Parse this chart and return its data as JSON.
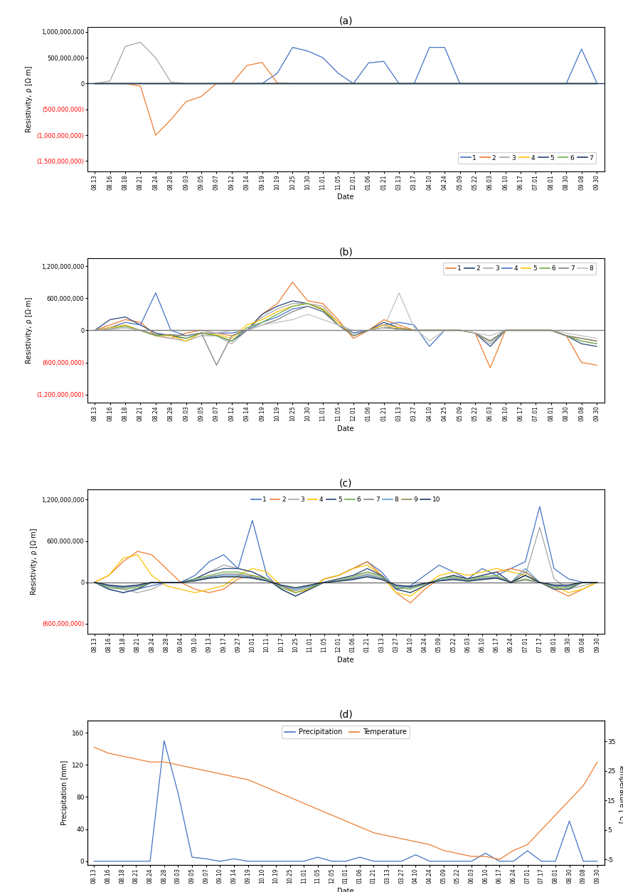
{
  "dates_a": [
    "08.13",
    "08.16",
    "08.18",
    "08.21",
    "08.24",
    "08.28",
    "09.03",
    "09.05",
    "09.07",
    "09.12",
    "09.14",
    "09.19",
    "10.19",
    "10.25",
    "10.30",
    "11.01",
    "11.05",
    "12.01",
    "01.06",
    "01.21",
    "03.13",
    "03.17",
    "04.10",
    "04.24",
    "05.09",
    "05.22",
    "06.03",
    "06.10",
    "06.17",
    "07.01",
    "08.01",
    "08.30",
    "09.08",
    "09.30"
  ],
  "dates_b": [
    "08.13",
    "08.16",
    "08.18",
    "08.21",
    "08.24",
    "08.28",
    "09.03",
    "09.05",
    "09.07",
    "09.12",
    "09.14",
    "09.19",
    "10.19",
    "10.25",
    "10.30",
    "11.01",
    "11.05",
    "12.01",
    "01.06",
    "01.21",
    "03.13",
    "03.27",
    "04.10",
    "04.25",
    "05.09",
    "05.22",
    "06.03",
    "06.10",
    "06.17",
    "07.01",
    "08.01",
    "08.30",
    "09.08",
    "09.30"
  ],
  "dates_c": [
    "08.13",
    "08.16",
    "08.18",
    "08.21",
    "08.24",
    "08.28",
    "09.04",
    "09.10",
    "09.13",
    "09.17",
    "09.27",
    "10.01",
    "10.11",
    "10.17",
    "10.25",
    "11.01",
    "11.05",
    "12.01",
    "01.06",
    "01.21",
    "03.13",
    "03.27",
    "04.10",
    "04.24",
    "05.09",
    "05.22",
    "06.03",
    "06.10",
    "06.17",
    "06.24",
    "07.01",
    "07.17",
    "08.01",
    "08.30",
    "09.08",
    "09.30"
  ],
  "dates_d": [
    "08.13",
    "08.16",
    "08.18",
    "08.21",
    "08.24",
    "08.28",
    "09.03",
    "09.05",
    "09.07",
    "09.10",
    "09.14",
    "09.19",
    "10.10",
    "10.19",
    "10.25",
    "11.01",
    "11.05",
    "12.05",
    "01.01",
    "01.06",
    "01.21",
    "03.13",
    "03.27",
    "04.10",
    "04.24",
    "05.09",
    "05.22",
    "06.03",
    "06.10",
    "06.17",
    "06.24",
    "07.01",
    "07.17",
    "08.01",
    "08.30",
    "09.08",
    "09.30"
  ],
  "panel_a_subtitle": "(a)",
  "panel_b_subtitle": "(b)",
  "panel_c_subtitle": "(c)",
  "panel_d_subtitle": "(d)",
  "ylabel_res": "Resistivity, ρ [Ω·m]",
  "xlabel": "Date",
  "ylabel_precip": "Precipitation [mm]",
  "ylabel_temp": "Temperature [°C]",
  "panel_a_yticks": [
    -1500000000,
    -1000000000,
    -500000000,
    0,
    500000000,
    1000000000
  ],
  "panel_a_ylim": [
    -1700000000,
    1100000000
  ],
  "panel_b_yticks": [
    -1200000000,
    -600000000,
    0,
    600000000,
    1200000000
  ],
  "panel_b_ylim": [
    -1350000000,
    1350000000
  ],
  "panel_c_yticks": [
    -600000000,
    0,
    600000000,
    1200000000
  ],
  "panel_c_ylim": [
    -750000000,
    1350000000
  ],
  "panel_d_ylim_precip": [
    -5,
    175
  ],
  "panel_d_yticks_precip": [
    0,
    40,
    80,
    120,
    160
  ],
  "panel_d_ylim_temp": [
    -7,
    42
  ],
  "panel_d_yticks_temp": [
    -5,
    5,
    15,
    25,
    35
  ],
  "legend_a_colors": [
    "#4472C4",
    "#ED7D31",
    "#A5A5A5",
    "#FFC000",
    "#264478",
    "#70AD47",
    "#203864"
  ],
  "legend_a_labels": [
    "1",
    "2",
    "3",
    "4",
    "5",
    "6",
    "7"
  ],
  "legend_b_colors": [
    "#ED7D31",
    "#264478",
    "#A5A5A5",
    "#4472C4",
    "#FFC000",
    "#70AD47",
    "#808080",
    "#BFC0C0"
  ],
  "legend_b_labels": [
    "1",
    "2",
    "3",
    "4",
    "5",
    "6",
    "7",
    "8"
  ],
  "legend_c_colors": [
    "#4472C4",
    "#ED7D31",
    "#A5A5A5",
    "#FFC000",
    "#264478",
    "#70AD47",
    "#808080",
    "#5B9BD5",
    "#938953",
    "#203864"
  ],
  "legend_c_labels": [
    "1",
    "2",
    "3",
    "4",
    "5",
    "6",
    "7",
    "8",
    "9",
    "10"
  ],
  "color_blue1": "#4472C4",
  "color_orange": "#ED7D31",
  "background_color": "#FFFFFF",
  "tick_label_color_red": "#FF0000",
  "tick_label_color_blue": "#0070C0"
}
